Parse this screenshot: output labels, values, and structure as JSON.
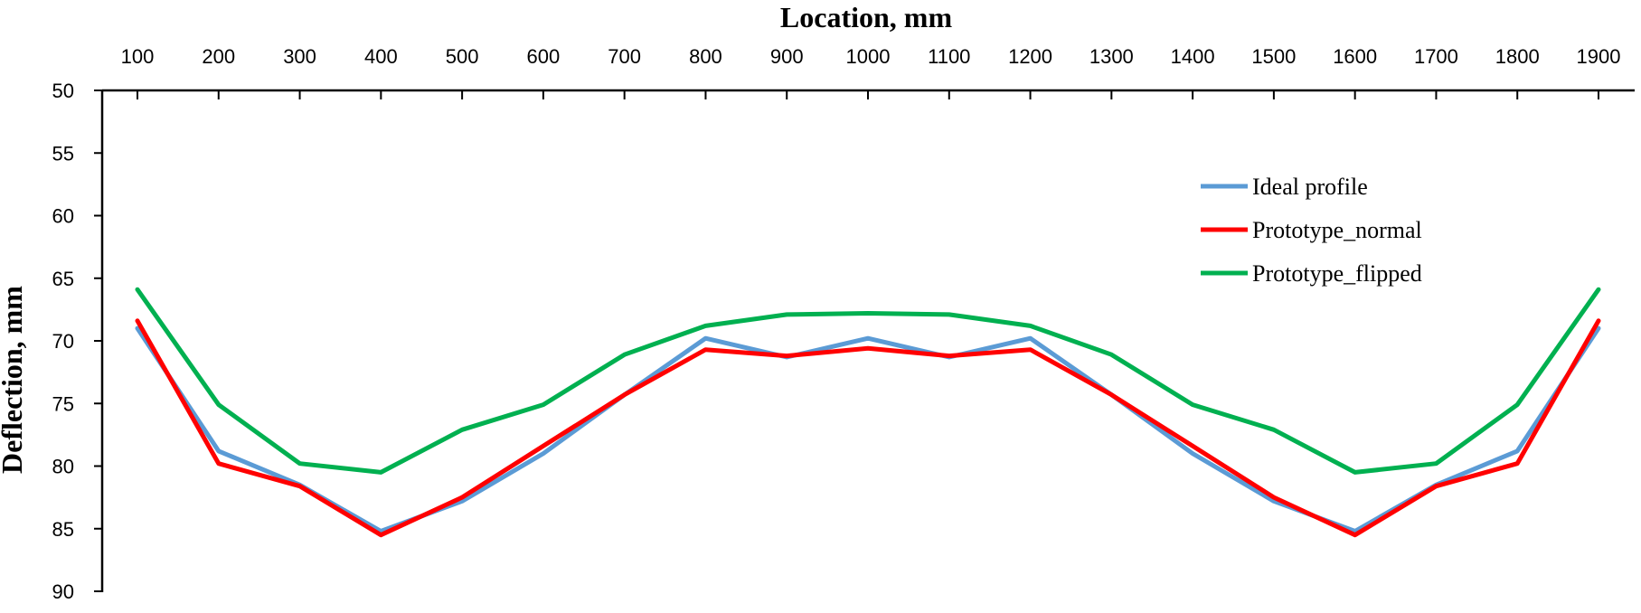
{
  "chart_data": {
    "type": "line",
    "xlabel": "Location, mm",
    "ylabel": "Deflection, mm",
    "x": [
      100,
      200,
      300,
      400,
      500,
      600,
      700,
      800,
      900,
      1000,
      1100,
      1200,
      1300,
      1400,
      1500,
      1600,
      1700,
      1800,
      1900
    ],
    "x_ticks": [
      "100",
      "200",
      "300",
      "400",
      "500",
      "600",
      "700",
      "800",
      "900",
      "1000",
      "1100",
      "1200",
      "1300",
      "1400",
      "1500",
      "1600",
      "1700",
      "1800",
      "1900"
    ],
    "y_ticks": [
      "50",
      "55",
      "60",
      "65",
      "70",
      "75",
      "80",
      "85",
      "90"
    ],
    "xlim": [
      100,
      1900
    ],
    "ylim": [
      50,
      90
    ],
    "y_inverted": true,
    "x_axis_position": "top",
    "grid": false,
    "legend_position": "top-right",
    "series": [
      {
        "name": "Ideal profile",
        "color": "#5B9BD5",
        "values": [
          69.0,
          78.8,
          81.5,
          85.2,
          82.8,
          79.0,
          74.3,
          69.8,
          71.3,
          69.8,
          71.3,
          69.8,
          74.3,
          79.0,
          82.8,
          85.2,
          81.5,
          78.8,
          69.0
        ]
      },
      {
        "name": "Prototype_normal",
        "color": "#FF0000",
        "values": [
          68.4,
          79.8,
          81.6,
          85.5,
          82.5,
          78.4,
          74.3,
          70.7,
          71.2,
          70.6,
          71.2,
          70.7,
          74.3,
          78.4,
          82.5,
          85.5,
          81.6,
          79.8,
          68.4
        ]
      },
      {
        "name": "Prototype_flipped",
        "color": "#00B050",
        "values": [
          65.9,
          75.1,
          79.8,
          80.5,
          77.1,
          75.1,
          71.1,
          68.8,
          67.9,
          67.8,
          67.9,
          68.8,
          71.1,
          75.1,
          77.1,
          80.5,
          79.8,
          75.1,
          65.9
        ]
      }
    ]
  }
}
